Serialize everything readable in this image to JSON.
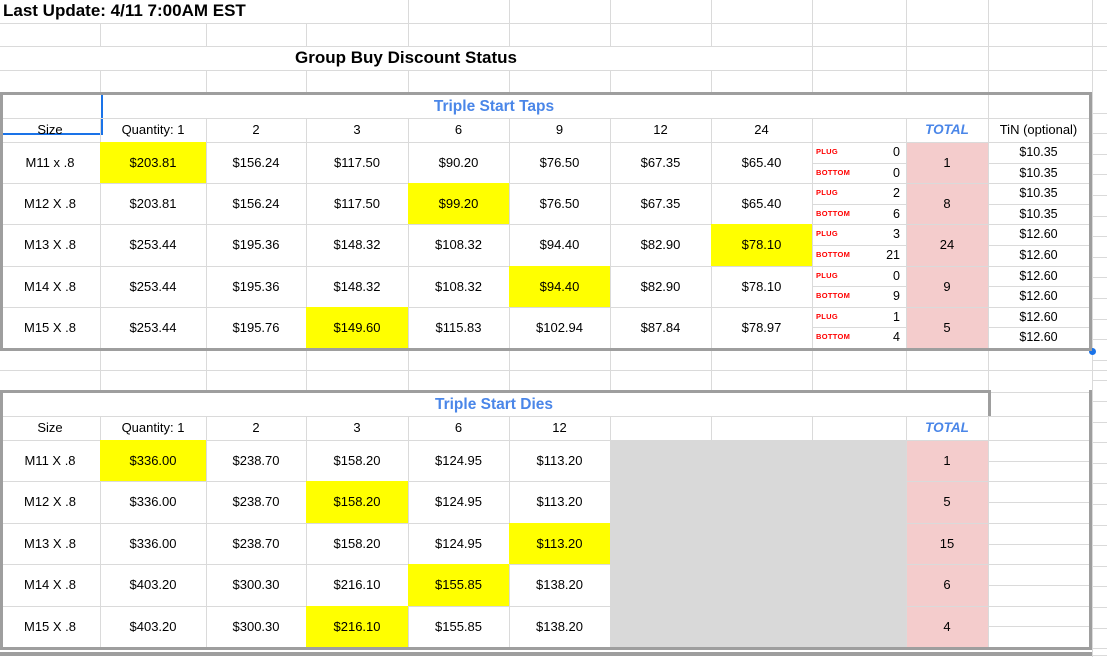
{
  "meta": {
    "last_update": "Last Update: 4/11 7:00AM EST",
    "page_title": "Group Buy Discount Status"
  },
  "taps": {
    "title": "Triple Start Taps",
    "columns": [
      "Size",
      "Quantity: 1",
      "2",
      "3",
      "6",
      "9",
      "12",
      "24"
    ],
    "plug_label": "PLUG",
    "bottom_label": "BOTTOM",
    "total_header": "TOTAL",
    "tin_header": "TiN (optional)",
    "rows": [
      {
        "size": "M11 x .8",
        "prices": [
          "$203.81",
          "$156.24",
          "$117.50",
          "$90.20",
          "$76.50",
          "$67.35",
          "$65.40"
        ],
        "highlight": 0,
        "plug": "0",
        "bottom": "0",
        "total": "1",
        "tin": [
          "$10.35",
          "$10.35"
        ]
      },
      {
        "size": "M12 X .8",
        "prices": [
          "$203.81",
          "$156.24",
          "$117.50",
          "$99.20",
          "$76.50",
          "$67.35",
          "$65.40"
        ],
        "highlight": 3,
        "plug": "2",
        "bottom": "6",
        "total": "8",
        "tin": [
          "$10.35",
          "$10.35"
        ]
      },
      {
        "size": "M13 X .8",
        "prices": [
          "$253.44",
          "$195.36",
          "$148.32",
          "$108.32",
          "$94.40",
          "$82.90",
          "$78.10"
        ],
        "highlight": 6,
        "selected": 4,
        "plug": "3",
        "bottom": "21",
        "total": "24",
        "tin": [
          "$12.60",
          "$12.60"
        ]
      },
      {
        "size": "M14 X .8",
        "prices": [
          "$253.44",
          "$195.36",
          "$148.32",
          "$108.32",
          "$94.40",
          "$82.90",
          "$78.10"
        ],
        "highlight": 4,
        "plug": "0",
        "bottom": "9",
        "total": "9",
        "tin": [
          "$12.60",
          "$12.60"
        ]
      },
      {
        "size": "M15 X .8",
        "prices": [
          "$253.44",
          "$195.76",
          "$149.60",
          "$115.83",
          "$102.94",
          "$87.84",
          "$78.97"
        ],
        "highlight": 2,
        "plug": "1",
        "bottom": "4",
        "total": "5",
        "tin": [
          "$12.60",
          "$12.60"
        ]
      }
    ]
  },
  "dies": {
    "title": "Triple Start Dies",
    "columns": [
      "Size",
      "Quantity: 1",
      "2",
      "3",
      "6",
      "12"
    ],
    "total_header": "TOTAL",
    "rows": [
      {
        "size": "M11 X .8",
        "prices": [
          "$336.00",
          "$238.70",
          "$158.20",
          "$124.95",
          "$113.20"
        ],
        "highlight": 0,
        "total": "1"
      },
      {
        "size": "M12 X .8",
        "prices": [
          "$336.00",
          "$238.70",
          "$158.20",
          "$124.95",
          "$113.20"
        ],
        "highlight": 2,
        "total": "5"
      },
      {
        "size": "M13 X .8",
        "prices": [
          "$336.00",
          "$238.70",
          "$158.20",
          "$124.95",
          "$113.20"
        ],
        "highlight": 4,
        "total": "15"
      },
      {
        "size": "M14 X .8",
        "prices": [
          "$403.20",
          "$300.30",
          "$216.10",
          "$155.85",
          "$138.20"
        ],
        "highlight": 3,
        "total": "6"
      },
      {
        "size": "M15 X .8",
        "prices": [
          "$403.20",
          "$300.30",
          "$216.10",
          "$155.85",
          "$138.20"
        ],
        "highlight": 2,
        "total": "4"
      }
    ]
  },
  "colors": {
    "highlight_yellow": "#ffff00",
    "total_pink": "#f4cccc",
    "blocked_gray": "#d9d9d9",
    "accent_blue": "#4a86e8",
    "plug_red": "#ff0000",
    "selection_blue": "#1a73e8",
    "table_border_gray": "#9e9e9e"
  }
}
